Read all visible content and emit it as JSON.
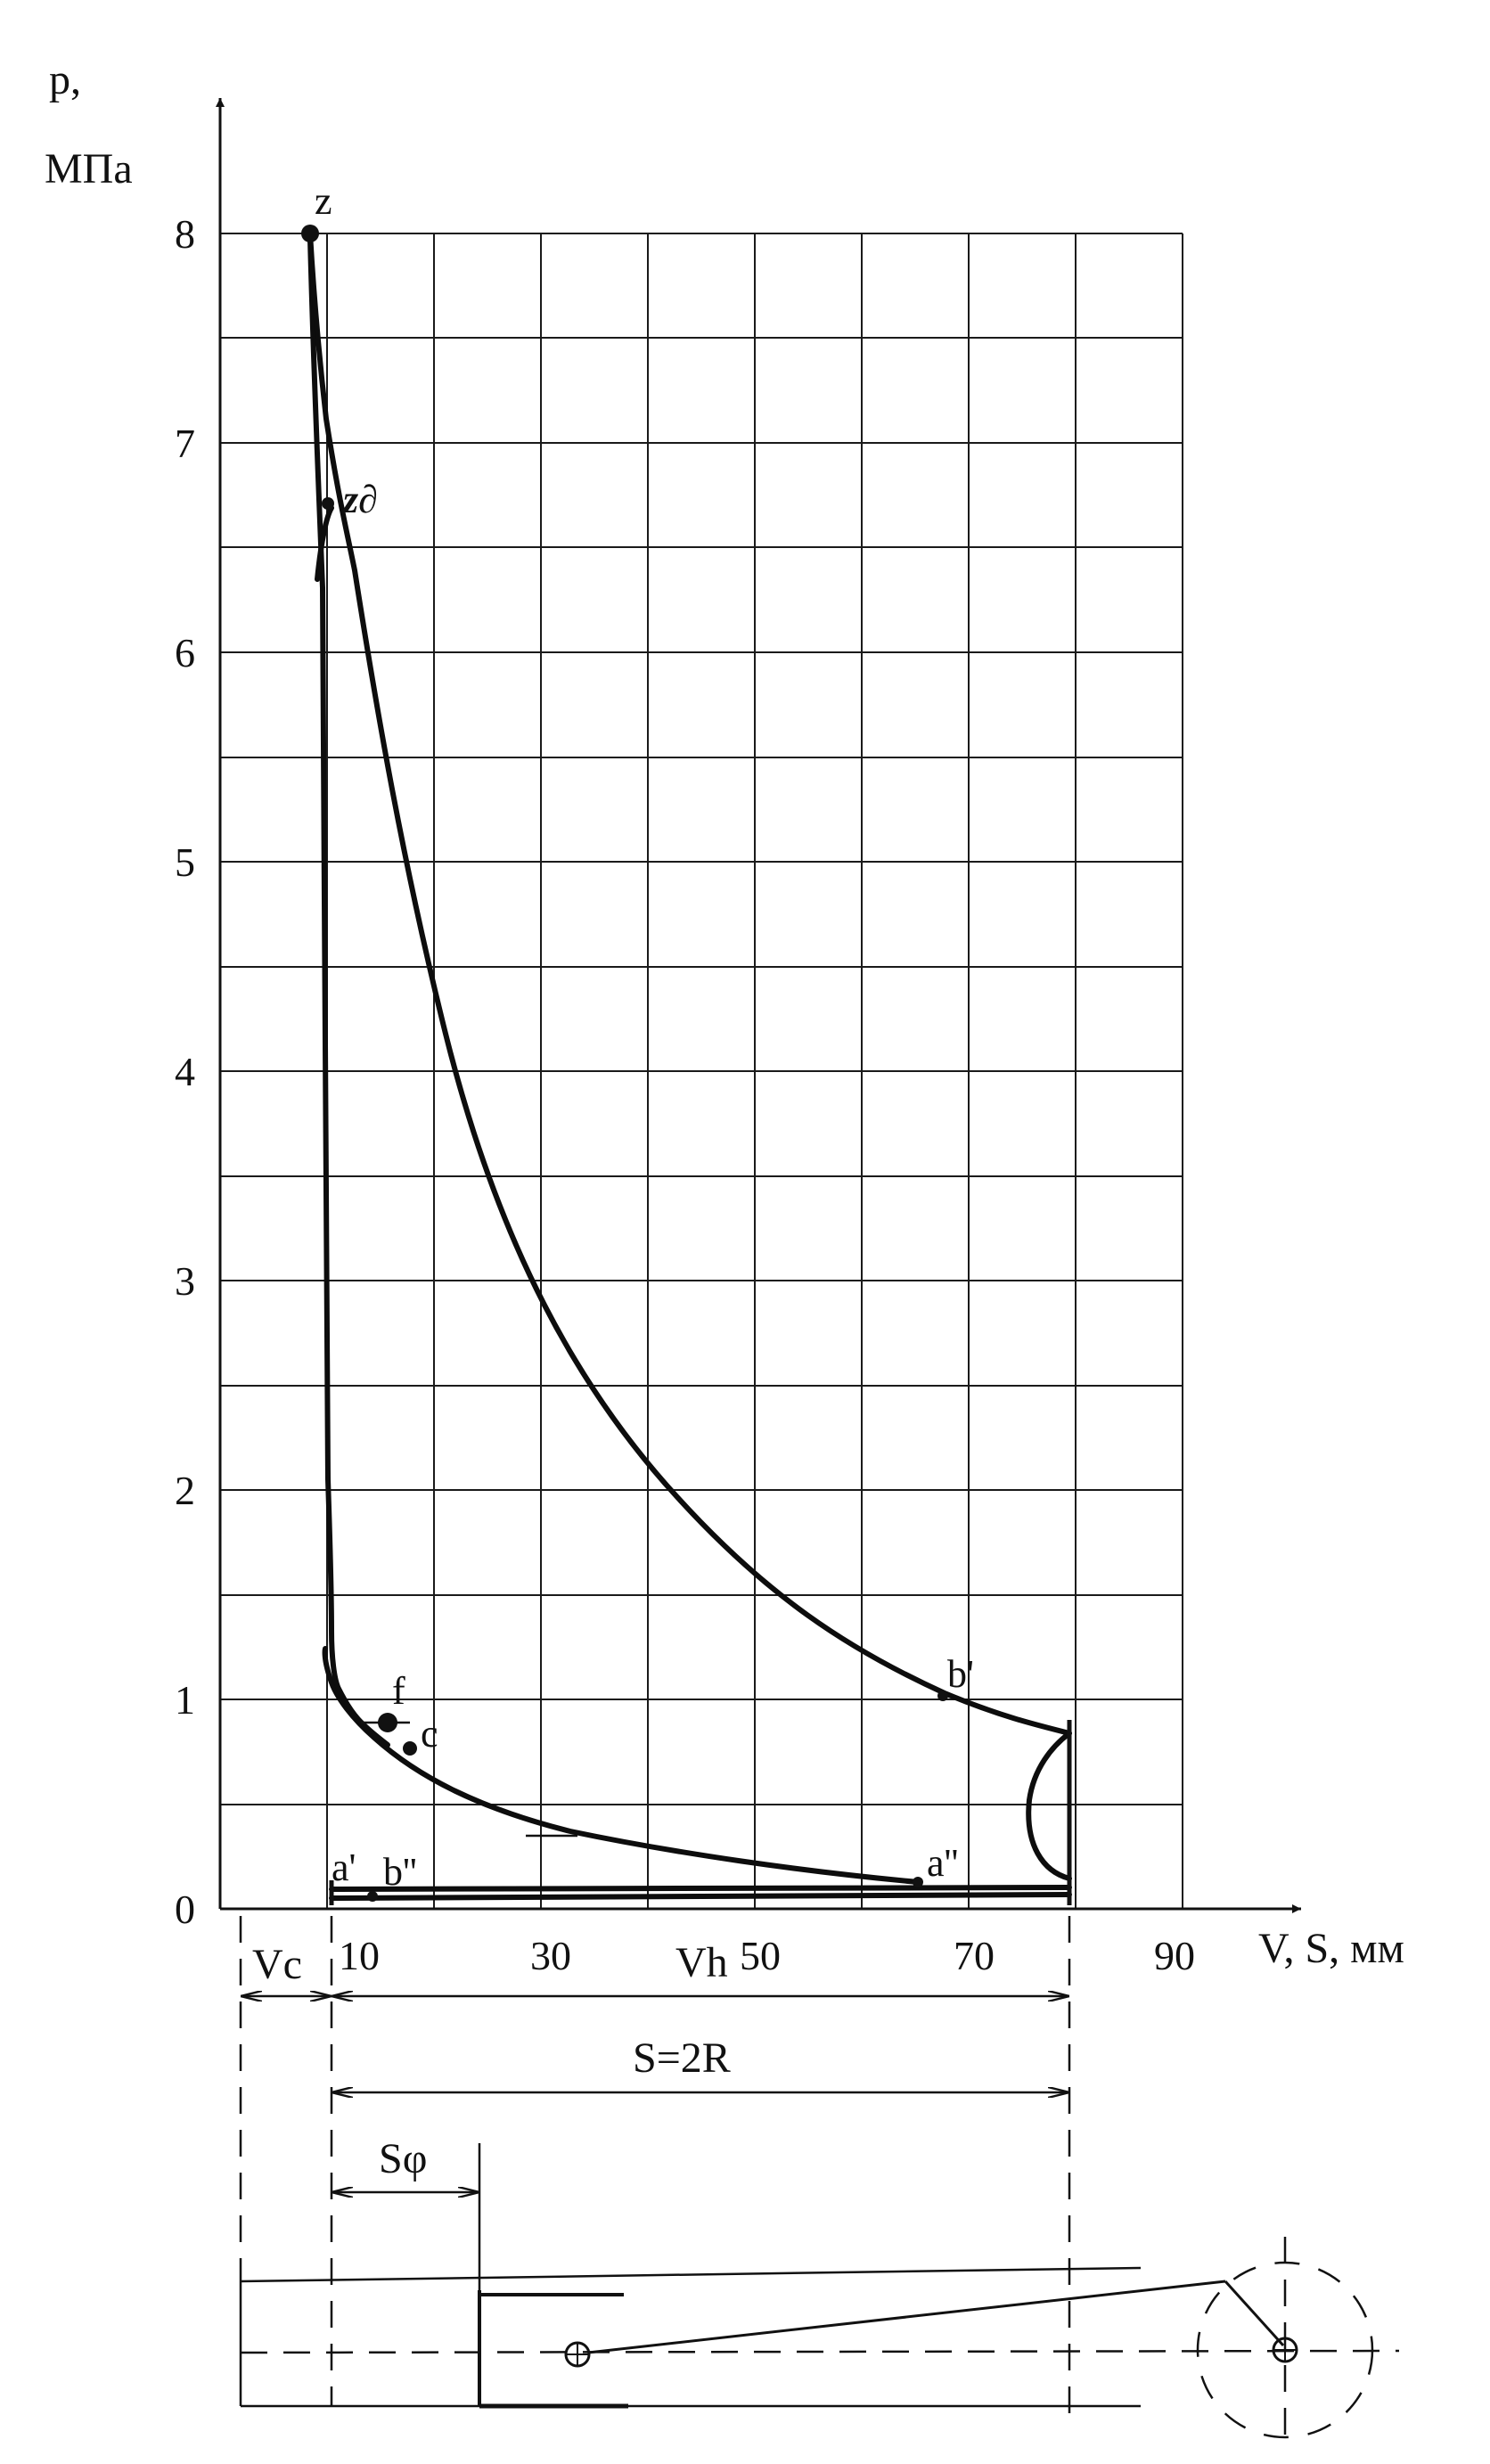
{
  "diagram": {
    "y_axis_label_line1": "p,",
    "y_axis_label_line2": "МПа",
    "x_axis_label": "V, S, мм",
    "y_ticks": [
      "0",
      "1",
      "2",
      "3",
      "4",
      "5",
      "6",
      "7",
      "8"
    ],
    "x_ticks": [
      "10",
      "30",
      "50",
      "70",
      "90"
    ],
    "point_labels": {
      "z": "z",
      "zd": "z∂",
      "f": "f",
      "c": "c",
      "b_prime": "b'",
      "a_prime": "a'",
      "b_double": "b''",
      "a_double": "a''"
    },
    "dimension_labels": {
      "vc": "Vc",
      "vh": "Vh",
      "stroke": "S=2R",
      "s_phi": "Sφ"
    }
  }
}
